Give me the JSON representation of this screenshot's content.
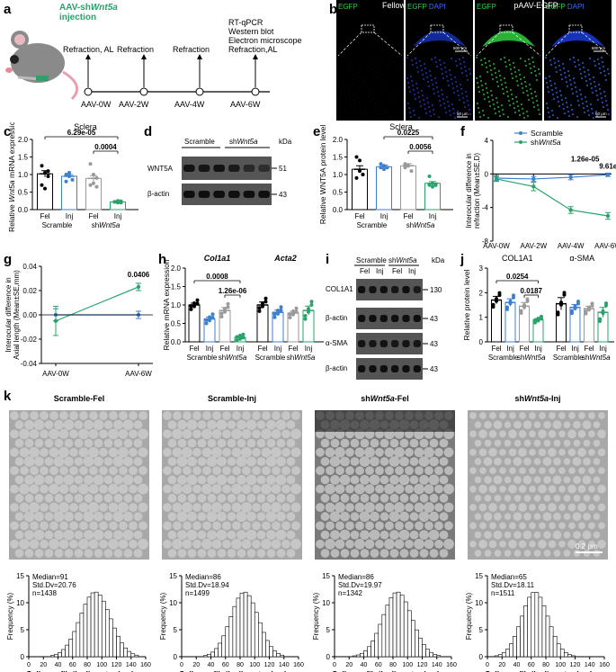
{
  "panels": {
    "a": {
      "letter": "a",
      "injection": "AAV-shWnt5a injection",
      "events": [
        {
          "label": "Refraction, AL",
          "time": "AAV-0W"
        },
        {
          "label": "Refraction",
          "time": "AAV-2W"
        },
        {
          "label": "Refraction",
          "time": "AAV-4W"
        },
        {
          "label": "RT-qPCR\nWestern blot\nElectron microscope\nRefraction,AL",
          "time": "AAV-6W"
        }
      ],
      "colors": {
        "injection": "#2aa36b"
      }
    },
    "b": {
      "letter": "b",
      "groups": [
        "Fellow",
        "pAAV-EGFP"
      ],
      "channels": [
        "EGFP",
        "EGFP DAPI",
        "EGFP",
        "EGFP DAPI"
      ],
      "scale_top": "500 μm",
      "scale_bottom": "50 μm"
    },
    "c": {
      "letter": "c"
    },
    "d": {
      "letter": "d",
      "groups": [
        "Scramble",
        "shWnt5a"
      ],
      "proteins": [
        "WNT5A",
        "β-actin"
      ],
      "kda_unit": "kDa",
      "kda": [
        "51",
        "43"
      ]
    },
    "e": {
      "letter": "e"
    },
    "f": {
      "letter": "f"
    },
    "g": {
      "letter": "g"
    },
    "h": {
      "letter": "h"
    },
    "i": {
      "letter": "i",
      "groups": [
        "Scramble",
        "shWnt5a"
      ],
      "lanes": [
        "Fel",
        "Inj",
        "Fel",
        "Inj"
      ],
      "proteins": [
        "COL1A1",
        "β-actin",
        "α-SMA",
        "β-actin"
      ],
      "kda_unit": "kDa",
      "kda": [
        "130",
        "43",
        "43",
        "43"
      ]
    },
    "j": {
      "letter": "j"
    },
    "k": {
      "letter": "k",
      "scale": "0.2 μm",
      "titles": [
        "Scramble-Fel",
        "Scramble-Inj",
        "shWnt5a-Fel",
        "shWnt5a-Inj"
      ],
      "stats": [
        {
          "median": "Median=91",
          "sd": "Std.Dv=20.76",
          "n": "n=1438"
        },
        {
          "median": "Median=86",
          "sd": "Std.Dv=18.94",
          "n": "n=1499"
        },
        {
          "median": "Median=86",
          "sd": "Std.Dv=19.97",
          "n": "n=1342"
        },
        {
          "median": "Median=65",
          "sd": "Std.Dv=18.11",
          "n": "n=1511"
        }
      ]
    }
  },
  "chart_data": [
    {
      "id": "c",
      "type": "bar",
      "title": "Sclera",
      "ylabel": "Relative Wnt5a mRNA expression",
      "ylim": [
        0,
        2.0
      ],
      "yticks": [
        "0.0",
        "0.5",
        "1.0",
        "1.5",
        "2.0"
      ],
      "categories": [
        "Fel",
        "Inj",
        "Fel",
        "Inj"
      ],
      "groups": [
        "Scramble",
        "shWnt5a"
      ],
      "values": [
        1.02,
        0.95,
        0.89,
        0.22
      ],
      "errors": [
        0.09,
        0.05,
        0.08,
        0.02
      ],
      "points": [
        [
          1.25,
          1.05,
          0.95,
          0.7,
          0.6,
          1.1
        ],
        [
          1.0,
          0.95,
          0.85,
          0.8,
          1.05
        ],
        [
          1.3,
          1.0,
          0.9,
          0.7,
          0.75,
          0.65
        ],
        [
          0.22,
          0.2,
          0.24,
          0.22,
          0.25,
          0.2
        ]
      ],
      "annotations": [
        "6.29e-05",
        "0.0004"
      ],
      "colors": [
        "#000000",
        "#3d7fd0",
        "#9a9a9a",
        "#2aa36b"
      ]
    },
    {
      "id": "e",
      "type": "bar",
      "title": "Sclera",
      "ylabel": "Relative WNT5A protein level",
      "ylim": [
        0,
        2.0
      ],
      "yticks": [
        "0.0",
        "0.5",
        "1.0",
        "1.5",
        "2.0"
      ],
      "categories": [
        "Fel",
        "Inj",
        "Fel",
        "Inj"
      ],
      "groups": [
        "Scramble",
        "shWnt5a"
      ],
      "values": [
        1.15,
        1.22,
        1.25,
        0.75
      ],
      "errors": [
        0.1,
        0.05,
        0.06,
        0.05
      ],
      "points": [
        [
          1.5,
          1.4,
          1.0,
          0.9,
          1.1,
          1.0
        ],
        [
          1.3,
          1.25,
          1.2,
          1.2,
          1.15
        ],
        [
          1.3,
          1.25,
          1.1,
          1.2
        ],
        [
          0.95,
          0.75,
          0.7,
          0.7,
          0.65,
          0.7
        ]
      ],
      "annotations": [
        "0.0225",
        "0.0056"
      ],
      "colors": [
        "#000000",
        "#3d7fd0",
        "#9a9a9a",
        "#2aa36b"
      ]
    },
    {
      "id": "f",
      "type": "line",
      "ylabel": "Interocular difference in refraction (Mean±SE,D)",
      "x": [
        "AAV-0W",
        "AAV-2W",
        "AAV-4W",
        "AAV-6W"
      ],
      "ylim": [
        -8,
        4
      ],
      "yticks": [
        "4",
        "0",
        "-4",
        "-8"
      ],
      "series": [
        {
          "name": "Scramble",
          "values": [
            -0.5,
            -0.6,
            -0.4,
            -0.1
          ],
          "color": "#3d7fd0"
        },
        {
          "name": "shWnt5a",
          "values": [
            -0.6,
            -1.5,
            -4.3,
            -5.0
          ],
          "color": "#2aa36b"
        }
      ],
      "annotations": [
        "1.26e-05",
        "9.61e-09"
      ]
    },
    {
      "id": "g",
      "type": "line",
      "ylabel": "Interocular difference in Axial length (Mean±SE,mm)",
      "x": [
        "AAV-0W",
        "AAV-6W"
      ],
      "ylim": [
        -0.04,
        0.04
      ],
      "yticks": [
        "0.04",
        "0.02",
        "0.00",
        "-0.02",
        "-0.04"
      ],
      "series": [
        {
          "name": "Scramble",
          "values": [
            0.0,
            0.0
          ],
          "color": "#3d7fd0"
        },
        {
          "name": "shWnt5a",
          "values": [
            -0.005,
            0.023
          ],
          "color": "#2aa36b"
        }
      ],
      "annotations": [
        "0.0406"
      ]
    },
    {
      "id": "h",
      "type": "bar",
      "ylabel": "Relative mRNA expression",
      "ylim": [
        0,
        2.0
      ],
      "yticks": [
        "0.0",
        "0.5",
        "1.0",
        "1.5",
        "2.0"
      ],
      "genes": [
        "Col1a1",
        "Acta2"
      ],
      "categories": [
        "Fel",
        "Inj",
        "Fel",
        "Inj",
        "Fel",
        "Inj",
        "Fel",
        "Inj"
      ],
      "groups": [
        "Scramble",
        "shWnt5a",
        "Scramble",
        "shWnt5a"
      ],
      "values": [
        1.0,
        0.62,
        0.85,
        0.12,
        1.0,
        0.8,
        0.78,
        0.85
      ],
      "errors": [
        0.05,
        0.05,
        0.08,
        0.02,
        0.08,
        0.06,
        0.05,
        0.12
      ],
      "annotations": [
        "0.0008",
        "1.26e-06"
      ],
      "colors": [
        "#000000",
        "#3d7fd0",
        "#9a9a9a",
        "#2aa36b",
        "#000000",
        "#3d7fd0",
        "#9a9a9a",
        "#2aa36b"
      ]
    },
    {
      "id": "j",
      "type": "bar",
      "ylabel": "Relative protein level",
      "ylim": [
        0,
        3
      ],
      "yticks": [
        "0",
        "1",
        "2",
        "3"
      ],
      "proteins": [
        "COL1A1",
        "α-SMA"
      ],
      "categories": [
        "Fel",
        "Inj",
        "Fel",
        "Inj",
        "Fel",
        "Inj",
        "Fel",
        "Inj"
      ],
      "groups": [
        "Scramble",
        "shWnt5a",
        "Scramble",
        "shWnt5a"
      ],
      "values": [
        1.7,
        1.6,
        1.45,
        0.9,
        1.55,
        1.4,
        1.35,
        1.2
      ],
      "errors": [
        0.15,
        0.15,
        0.15,
        0.05,
        0.25,
        0.12,
        0.1,
        0.2
      ],
      "annotations": [
        "0.0254",
        "0.0187"
      ],
      "colors": [
        "#000000",
        "#3d7fd0",
        "#9a9a9a",
        "#2aa36b",
        "#000000",
        "#3d7fd0",
        "#9a9a9a",
        "#2aa36b"
      ]
    },
    {
      "id": "k-hist",
      "type": "bar",
      "xlabel": "Collagen fibrils diameter (nm)",
      "ylabel": "Frequency (%)",
      "ylim": [
        0,
        15
      ],
      "yticks": [
        "0",
        "5",
        "10",
        "15"
      ],
      "xticks": [
        "0",
        "20",
        "40",
        "60",
        "80",
        "100",
        "120",
        "140",
        "160"
      ],
      "series": [
        {
          "name": "Scramble-Fel",
          "center": 91,
          "sd": 20.76
        },
        {
          "name": "Scramble-Inj",
          "center": 86,
          "sd": 18.94
        },
        {
          "name": "shWnt5a-Fel",
          "center": 86,
          "sd": 19.97
        },
        {
          "name": "shWnt5a-Inj",
          "center": 65,
          "sd": 18.11
        }
      ]
    }
  ]
}
